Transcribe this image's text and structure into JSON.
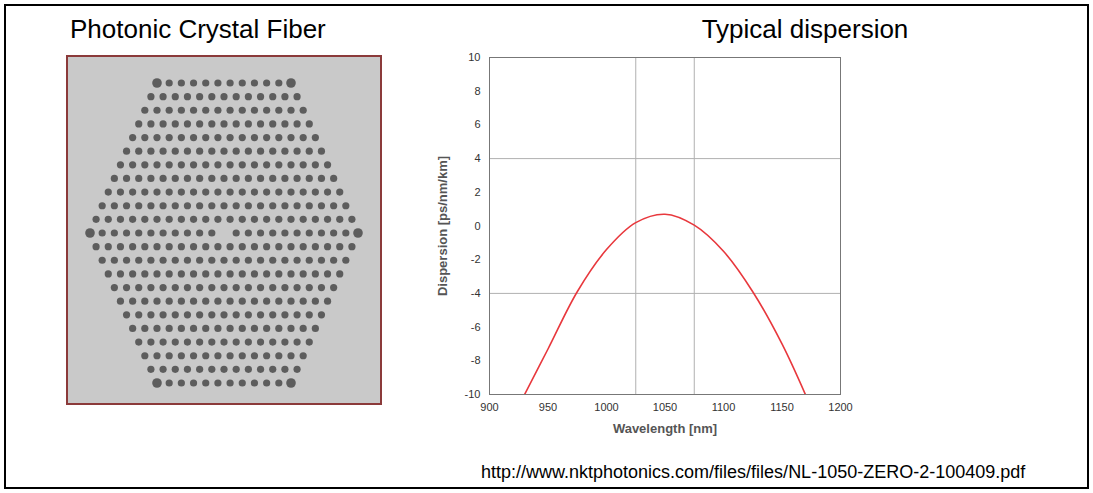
{
  "left_panel": {
    "title": "Photonic Crystal Fiber"
  },
  "chart_data": {
    "type": "line",
    "title": "Typical dispersion",
    "x_label": "Wavelength [nm]",
    "y_label": "Dispersion [ps/nm/km]",
    "x": [
      930,
      950,
      975,
      1000,
      1025,
      1050,
      1075,
      1100,
      1125,
      1150,
      1170
    ],
    "values": [
      -10,
      -7.3,
      -3.9,
      -1.4,
      0.2,
      0.7,
      0.05,
      -1.5,
      -3.9,
      -7.0,
      -10
    ],
    "color": "#e8383d",
    "xlim": [
      900,
      1200
    ],
    "xticks": [
      900,
      950,
      1000,
      1050,
      1100,
      1150,
      1200
    ],
    "ylim": [
      -10,
      10
    ],
    "yticks": [
      -10,
      -8,
      -6,
      -4,
      -2,
      0,
      2,
      4,
      6,
      8,
      10
    ],
    "reference_x": [
      1025,
      1075
    ],
    "reference_y": [
      -4,
      4
    ],
    "grid": false
  },
  "caption": "http://www.nktphotonics.com/files/files/NL-1050-ZERO-2-100409.pdf"
}
